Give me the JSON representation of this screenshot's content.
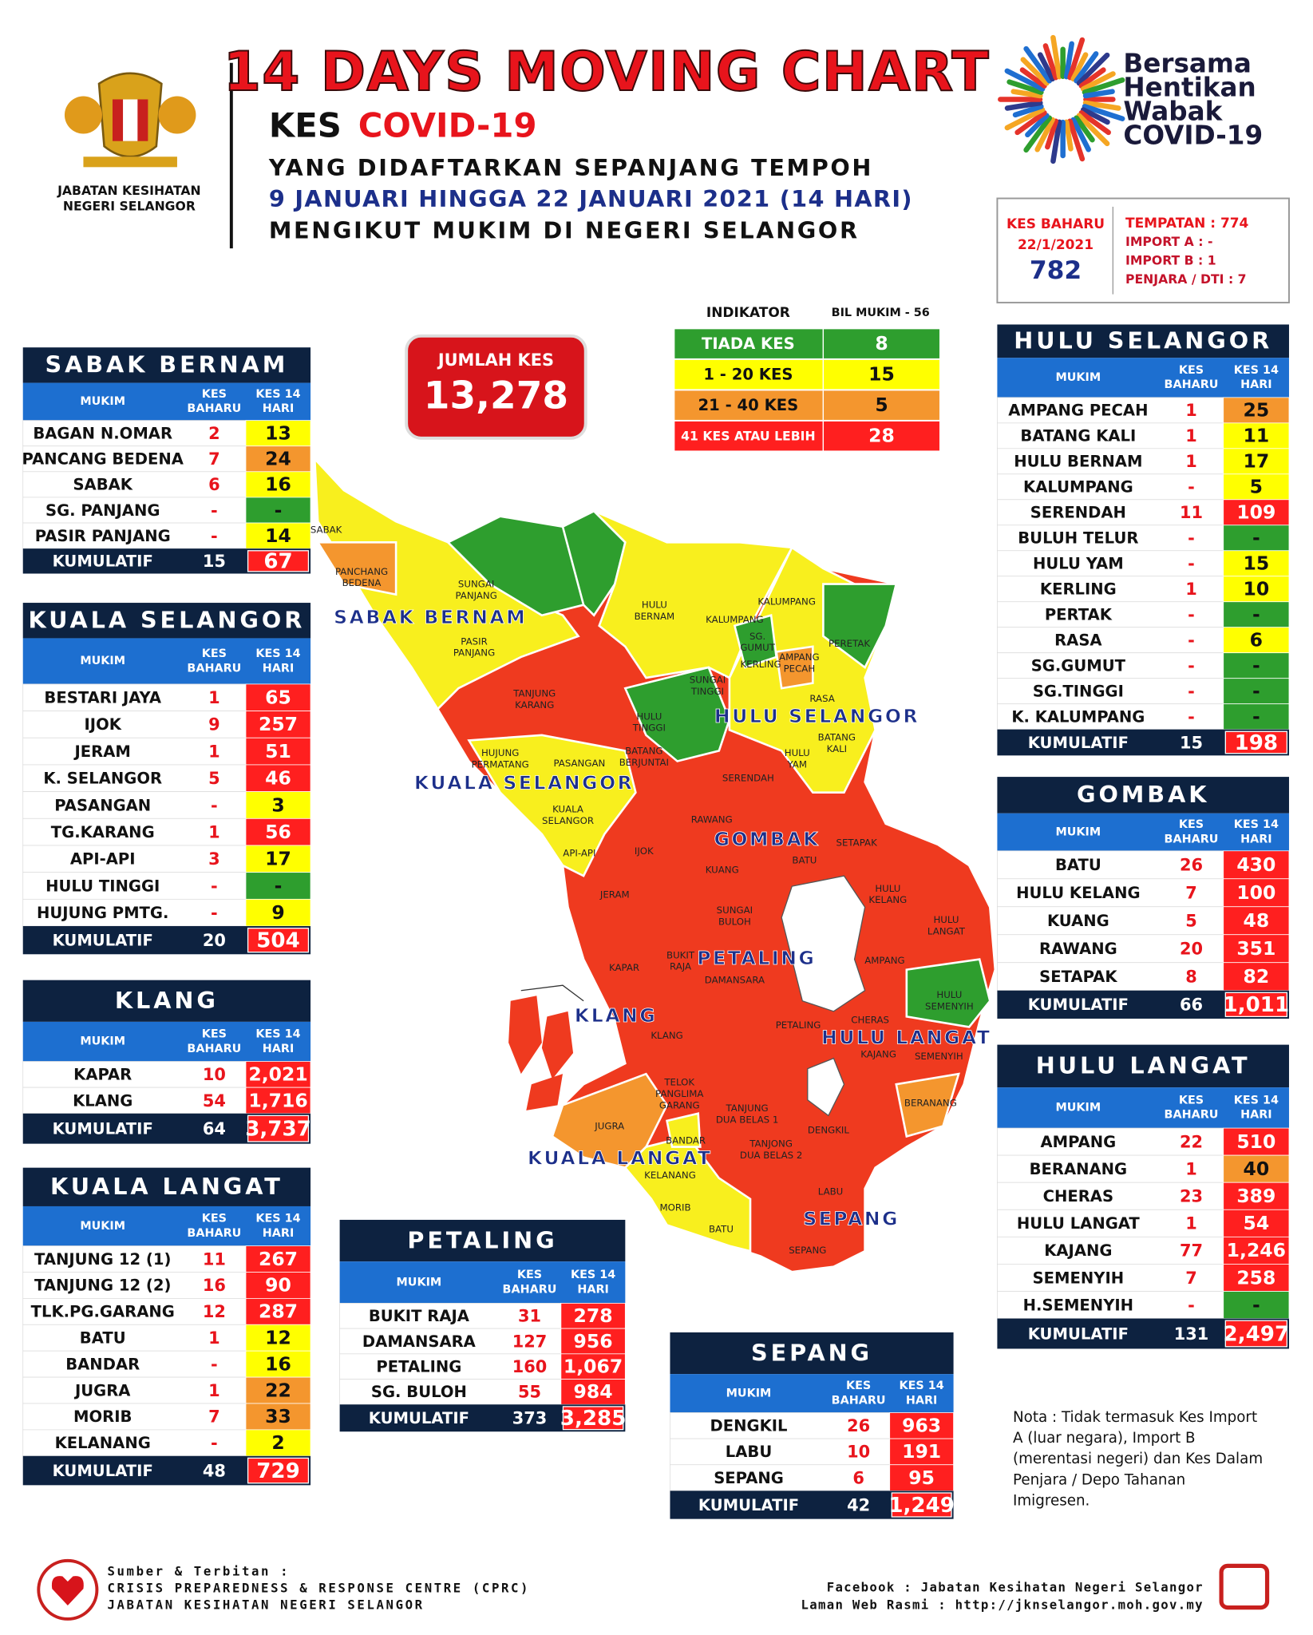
{
  "header": {
    "title": "14 DAYS MOVING CHART",
    "kes": "KES",
    "covid": "COVID-19",
    "line2": "YANG DIDAFTARKAN SEPANJANG TEMPOH",
    "line3": "9 JANUARI HINGGA 22 JANUARI 2021 (14 HARI)",
    "line4": "MENGIKUT MUKIM DI NEGERI SELANGOR",
    "agency": [
      "JABATAN KESIHATAN",
      "NEGERI SELANGOR"
    ],
    "campaign": [
      "Bersama",
      "Hentikan",
      "Wabak",
      "COVID-19"
    ]
  },
  "new_cases": {
    "label": "KES BAHARU",
    "date": "22/1/2021",
    "total": "782",
    "details": [
      "TEMPATAN : 774",
      "IMPORT A : -",
      "IMPORT B : 1",
      "PENJARA / DTI : 7"
    ]
  },
  "total_cases": {
    "label": "JUMLAH KES",
    "value": "13,278"
  },
  "indicator": {
    "label": "INDIKATOR",
    "count_label": "BIL MUKIM - 56",
    "items": [
      {
        "label": "TIADA KES",
        "count": "8",
        "color": "#2e9e2e"
      },
      {
        "label": "1 - 20 KES",
        "count": "15",
        "color": "#ffff00"
      },
      {
        "label": "21 - 40 KES",
        "count": "5",
        "color": "#f4962e"
      },
      {
        "label": "41 KES ATAU LEBIH",
        "count": "28",
        "color": "#ff1f1f"
      }
    ]
  },
  "columns": {
    "mukim": "MUKIM",
    "baharu": [
      "KES",
      "BAHARU"
    ],
    "hari14": [
      "KES 14",
      "HARI"
    ]
  },
  "kumulatif_label": "KUMULATIF",
  "tables": [
    {
      "name": "SABAK BERNAM",
      "rows": [
        [
          "BAGAN N.OMAR",
          "2",
          "13"
        ],
        [
          "PANCANG BEDENA",
          "7",
          "24"
        ],
        [
          "SABAK",
          "6",
          "16"
        ],
        [
          "SG. PANJANG",
          "-",
          "-"
        ],
        [
          "PASIR PANJANG",
          "-",
          "14"
        ]
      ],
      "colors": [
        "#ffff00",
        "#f4962e",
        "#ffff00",
        "#2e9e2e",
        "#ffff00"
      ],
      "kumulatif": [
        "15",
        "67"
      ]
    },
    {
      "name": "KUALA SELANGOR",
      "rows": [
        [
          "BESTARI JAYA",
          "1",
          "65"
        ],
        [
          "IJOK",
          "9",
          "257"
        ],
        [
          "JERAM",
          "1",
          "51"
        ],
        [
          "K. SELANGOR",
          "5",
          "46"
        ],
        [
          "PASANGAN",
          "-",
          "3"
        ],
        [
          "TG.KARANG",
          "1",
          "56"
        ],
        [
          "API-API",
          "3",
          "17"
        ],
        [
          "HULU TINGGI",
          "-",
          "-"
        ],
        [
          "HUJUNG PMTG.",
          "-",
          "9"
        ]
      ],
      "colors": [
        "#ff1f1f",
        "#ff1f1f",
        "#ff1f1f",
        "#ff1f1f",
        "#ffff00",
        "#ff1f1f",
        "#ffff00",
        "#2e9e2e",
        "#ffff00"
      ],
      "kumulatif": [
        "20",
        "504"
      ]
    },
    {
      "name": "KLANG",
      "rows": [
        [
          "KAPAR",
          "10",
          "2,021"
        ],
        [
          "KLANG",
          "54",
          "1,716"
        ]
      ],
      "colors": [
        "#ff1f1f",
        "#ff1f1f"
      ],
      "kumulatif": [
        "64",
        "3,737"
      ]
    },
    {
      "name": "KUALA LANGAT",
      "rows": [
        [
          "TANJUNG 12 (1)",
          "11",
          "267"
        ],
        [
          "TANJUNG 12 (2)",
          "16",
          "90"
        ],
        [
          "TLK.PG.GARANG",
          "12",
          "287"
        ],
        [
          "BATU",
          "1",
          "12"
        ],
        [
          "BANDAR",
          "-",
          "16"
        ],
        [
          "JUGRA",
          "1",
          "22"
        ],
        [
          "MORIB",
          "7",
          "33"
        ],
        [
          "KELANANG",
          "-",
          "2"
        ]
      ],
      "colors": [
        "#ff1f1f",
        "#ff1f1f",
        "#ff1f1f",
        "#ffff00",
        "#ffff00",
        "#f4962e",
        "#f4962e",
        "#ffff00"
      ],
      "kumulatif": [
        "48",
        "729"
      ]
    },
    {
      "name": "PETALING",
      "rows": [
        [
          "BUKIT RAJA",
          "31",
          "278"
        ],
        [
          "DAMANSARA",
          "127",
          "956"
        ],
        [
          "PETALING",
          "160",
          "1,067"
        ],
        [
          "SG. BULOH",
          "55",
          "984"
        ]
      ],
      "colors": [
        "#ff1f1f",
        "#ff1f1f",
        "#ff1f1f",
        "#ff1f1f"
      ],
      "kumulatif": [
        "373",
        "3,285"
      ]
    },
    {
      "name": "SEPANG",
      "rows": [
        [
          "DENGKIL",
          "26",
          "963"
        ],
        [
          "LABU",
          "10",
          "191"
        ],
        [
          "SEPANG",
          "6",
          "95"
        ]
      ],
      "colors": [
        "#ff1f1f",
        "#ff1f1f",
        "#ff1f1f"
      ],
      "kumulatif": [
        "42",
        "1,249"
      ]
    },
    {
      "name": "HULU SELANGOR",
      "rows": [
        [
          "AMPANG PECAH",
          "1",
          "25"
        ],
        [
          "BATANG KALI",
          "1",
          "11"
        ],
        [
          "HULU BERNAM",
          "1",
          "17"
        ],
        [
          "KALUMPANG",
          "-",
          "5"
        ],
        [
          "SERENDAH",
          "11",
          "109"
        ],
        [
          "BULUH TELUR",
          "-",
          "-"
        ],
        [
          "HULU YAM",
          "-",
          "15"
        ],
        [
          "KERLING",
          "1",
          "10"
        ],
        [
          "PERTAK",
          "-",
          "-"
        ],
        [
          "RASA",
          "-",
          "6"
        ],
        [
          "SG.GUMUT",
          "-",
          "-"
        ],
        [
          "SG.TINGGI",
          "-",
          "-"
        ],
        [
          "K. KALUMPANG",
          "-",
          "-"
        ]
      ],
      "colors": [
        "#f4962e",
        "#ffff00",
        "#ffff00",
        "#ffff00",
        "#ff1f1f",
        "#2e9e2e",
        "#ffff00",
        "#ffff00",
        "#2e9e2e",
        "#ffff00",
        "#2e9e2e",
        "#2e9e2e",
        "#2e9e2e"
      ],
      "kumulatif": [
        "15",
        "198"
      ]
    },
    {
      "name": "GOMBAK",
      "rows": [
        [
          "BATU",
          "26",
          "430"
        ],
        [
          "HULU KELANG",
          "7",
          "100"
        ],
        [
          "KUANG",
          "5",
          "48"
        ],
        [
          "RAWANG",
          "20",
          "351"
        ],
        [
          "SETAPAK",
          "8",
          "82"
        ]
      ],
      "colors": [
        "#ff1f1f",
        "#ff1f1f",
        "#ff1f1f",
        "#ff1f1f",
        "#ff1f1f"
      ],
      "kumulatif": [
        "66",
        "1,011"
      ]
    },
    {
      "name": "HULU LANGAT",
      "rows": [
        [
          "AMPANG",
          "22",
          "510"
        ],
        [
          "BERANANG",
          "1",
          "40"
        ],
        [
          "CHERAS",
          "23",
          "389"
        ],
        [
          "HULU LANGAT",
          "1",
          "54"
        ],
        [
          "KAJANG",
          "77",
          "1,246"
        ],
        [
          "SEMENYIH",
          "7",
          "258"
        ],
        [
          "H.SEMENYIH",
          "-",
          "-"
        ]
      ],
      "colors": [
        "#ff1f1f",
        "#f4962e",
        "#ff1f1f",
        "#ff1f1f",
        "#ff1f1f",
        "#ff1f1f",
        "#2e9e2e"
      ],
      "kumulatif": [
        "131",
        "2,497"
      ]
    }
  ],
  "map": {
    "districts": [
      "SABAK BERNAM",
      "KUALA SELANGOR",
      "HULU SELANGOR",
      "GOMBAK",
      "PETALING",
      "KLANG",
      "HULU LANGAT",
      "KUALA LANGAT",
      "SEPANG"
    ],
    "mukim": [
      [
        "SABAK"
      ],
      [
        "PANCHANG",
        "BEDENA"
      ],
      [
        "SUNGAI",
        "PANJANG"
      ],
      [
        "PASIR",
        "PANJANG"
      ],
      [
        "HULU",
        "BERNAM"
      ],
      [
        "KALUMPANG"
      ],
      [
        "KALUMPANG"
      ],
      [
        "SG.",
        "GUMUT"
      ],
      [
        "PERETAK"
      ],
      [
        "KERLING"
      ],
      [
        "AMPANG",
        "PECAH"
      ],
      [
        "SUNGAI",
        "TINGGI"
      ],
      [
        "RASA"
      ],
      [
        "TANJUNG",
        "KARANG"
      ],
      [
        "HULU",
        "TINGGI"
      ],
      [
        "BATANG",
        "KALI"
      ],
      [
        "HUJUNG",
        "PERMATANG"
      ],
      [
        "PASANGAN"
      ],
      [
        "BATANG",
        "BERJUNTAI"
      ],
      [
        "HULU",
        "YAM"
      ],
      [
        "SERENDAH"
      ],
      [
        "KUALA",
        "SELANGOR"
      ],
      [
        "RAWANG"
      ],
      [
        "SETAPAK"
      ],
      [
        "API-API"
      ],
      [
        "IJOK"
      ],
      [
        "BATU"
      ],
      [
        "KUANG"
      ],
      [
        "HULU",
        "KELANG"
      ],
      [
        "JERAM"
      ],
      [
        "SUNGAI",
        "BULOH"
      ],
      [
        "HULU",
        "LANGAT"
      ],
      [
        "BUKIT",
        "RAJA"
      ],
      [
        "AMPANG"
      ],
      [
        "KAPAR"
      ],
      [
        "DAMANSARA"
      ],
      [
        "HULU",
        "SEMENYIH"
      ],
      [
        "CHERAS"
      ],
      [
        "PETALING"
      ],
      [
        "KLANG"
      ],
      [
        "KAJANG"
      ],
      [
        "SEMENYIH"
      ],
      [
        "TELOK",
        "PANGLIMA",
        "GARANG"
      ],
      [
        "TANJUNG",
        "DUA BELAS 1"
      ],
      [
        "BERANANG"
      ],
      [
        "DENGKIL"
      ],
      [
        "JUGRA"
      ],
      [
        "BANDAR"
      ],
      [
        "TANJONG",
        "DUA BELAS 2"
      ],
      [
        "KELANANG"
      ],
      [
        "LABU"
      ],
      [
        "MORIB"
      ],
      [
        "BATU"
      ],
      [
        "SEPANG"
      ]
    ]
  },
  "note": [
    "Nota : Tidak termasuk Kes Import",
    "A (luar negara), Import B",
    "(merentasi negeri) dan Kes Dalam",
    "Penjara / Depo Tahanan",
    "Imigresen."
  ],
  "footer": {
    "source": [
      "Sumber & Terbitan :",
      "CRISIS PREPAREDNESS & RESPONSE CENTRE (CPRC)",
      "JABATAN KESIHATAN NEGERI SELANGOR"
    ],
    "links": [
      "Facebook : Jabatan Kesihatan Negeri Selangor",
      "Laman Web Rasmi : http://jknselangor.moh.gov.my"
    ]
  }
}
